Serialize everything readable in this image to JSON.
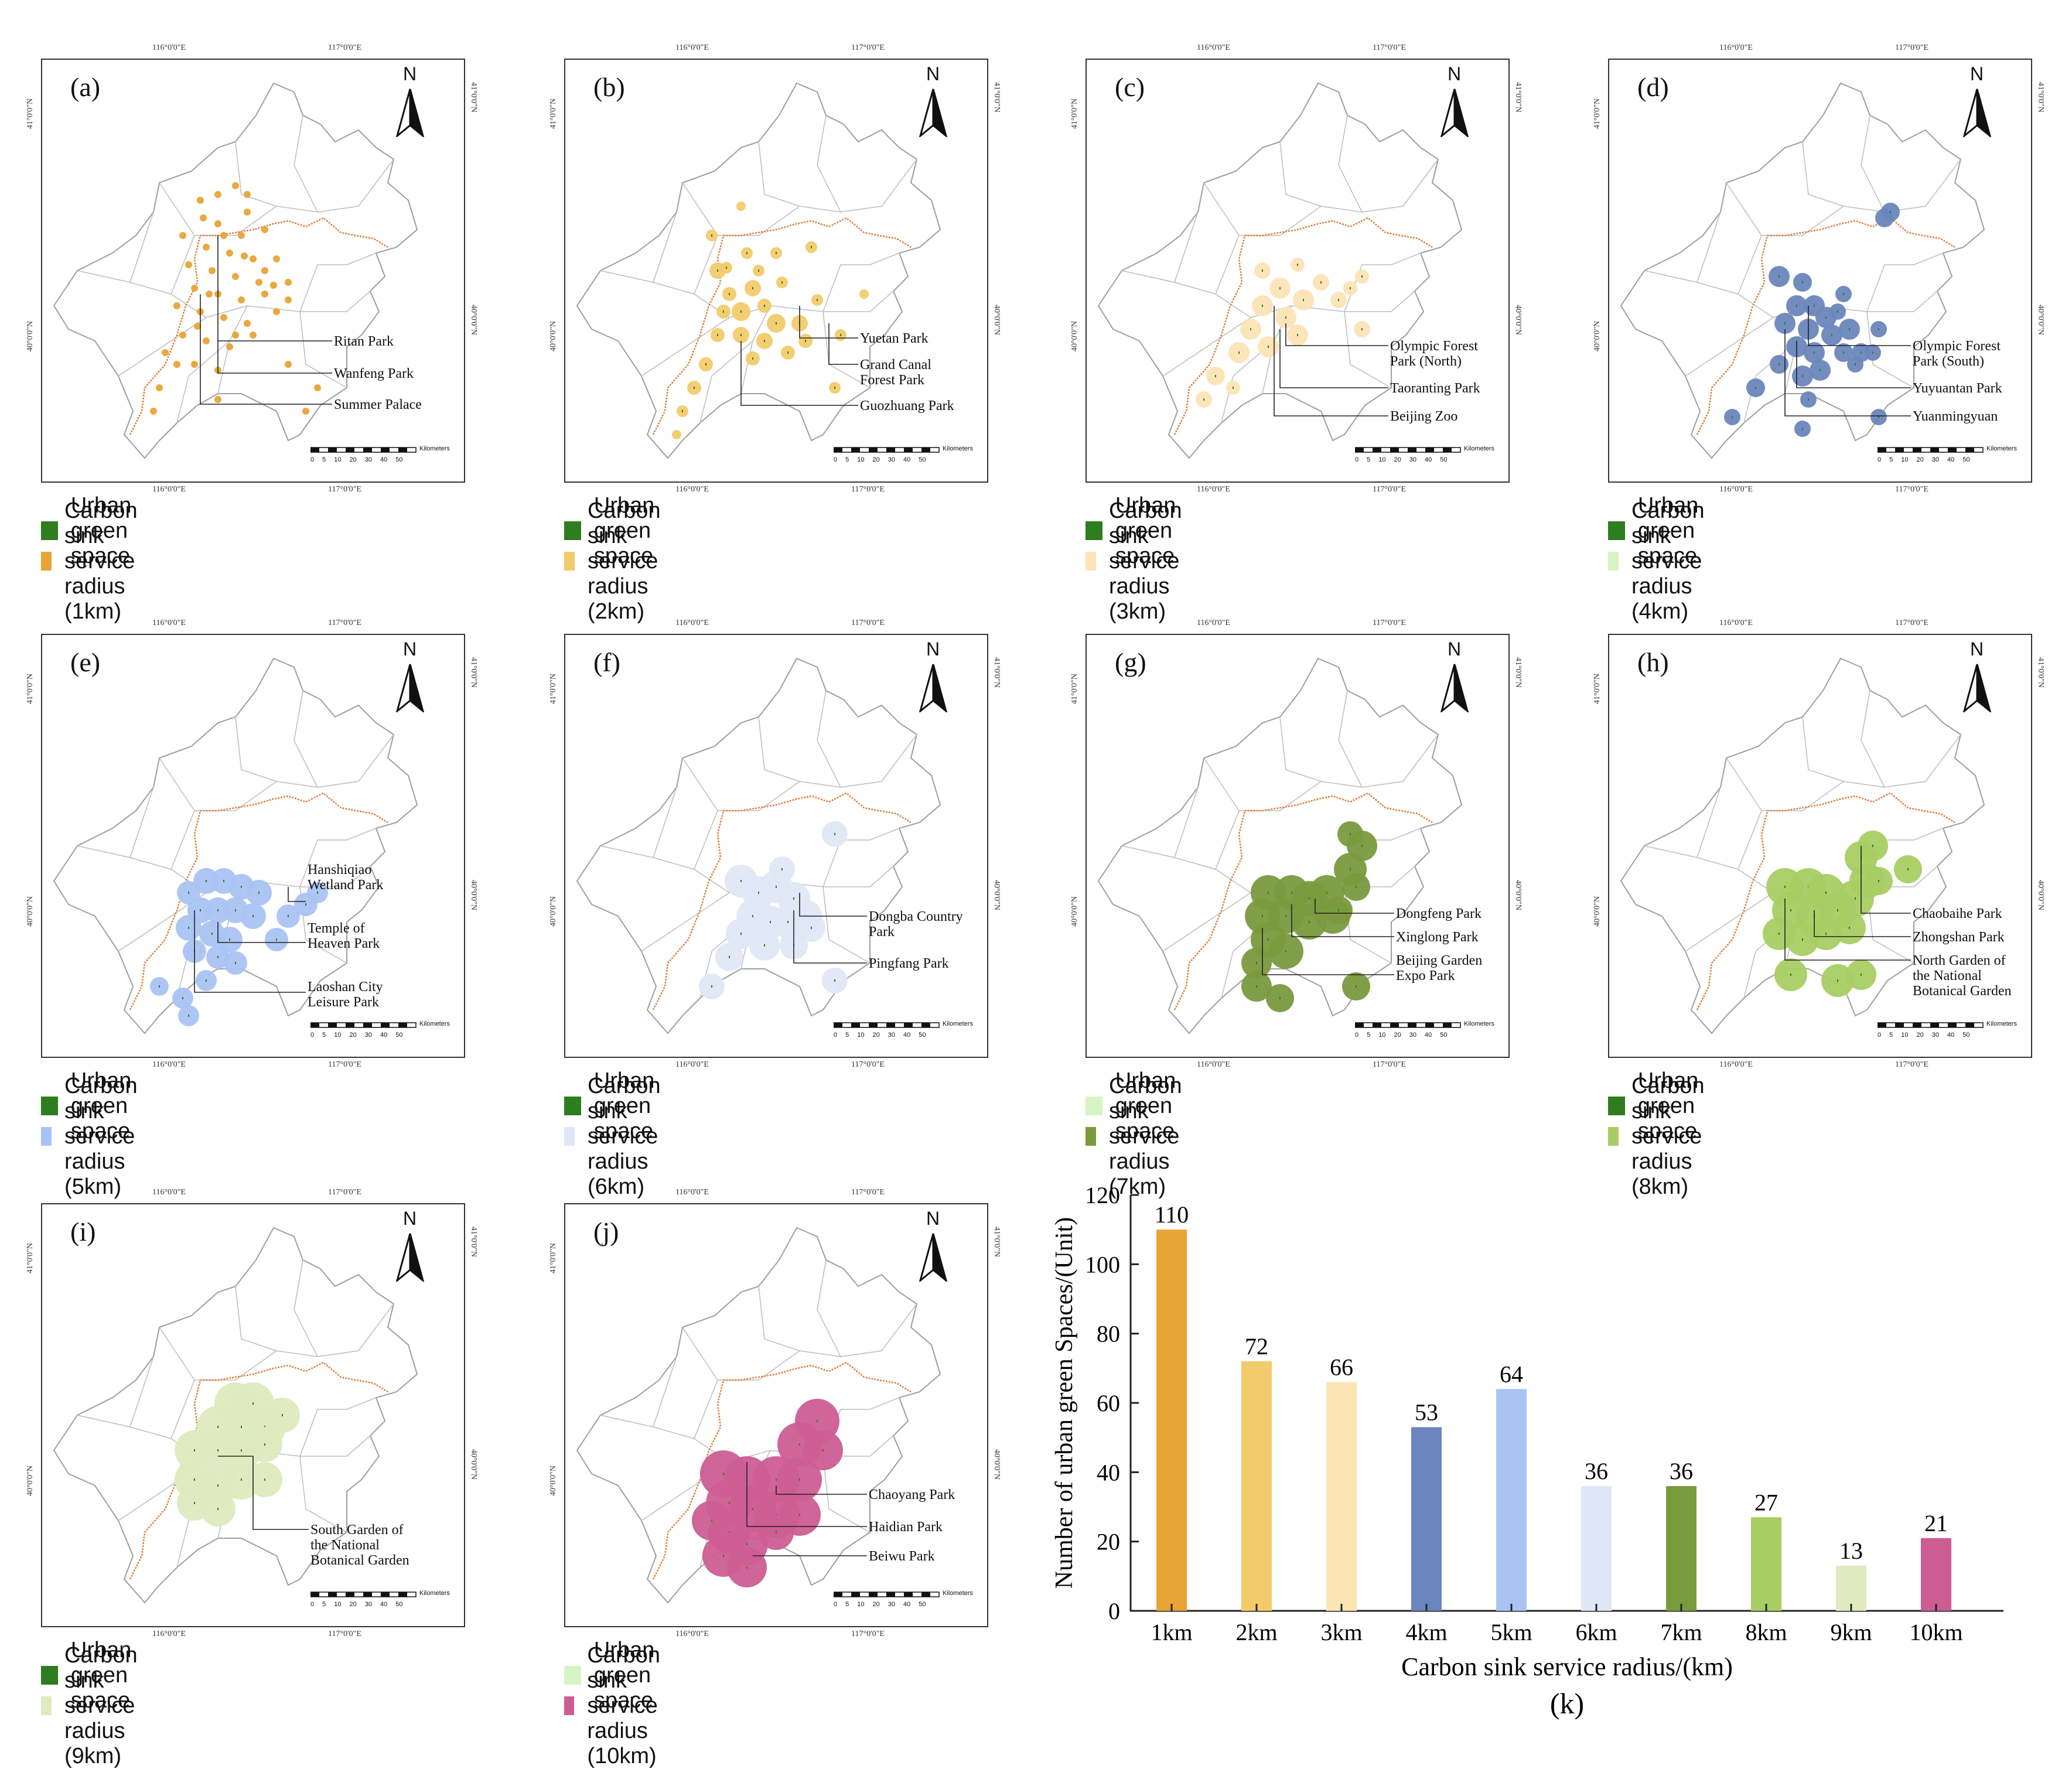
{
  "coords": {
    "lon_left": "116°0'0\"E",
    "lon_right": "117°0'0\"E",
    "lat_top": "41°0'0\"N",
    "lat_mid": "40°0'0\"N"
  },
  "map_common": {
    "north_label": "N",
    "scale_ticks": [
      "0",
      "5",
      "10",
      "20",
      "30",
      "40",
      "50"
    ],
    "scale_unit": "Kilometers",
    "legend_green_label": "Urban green space"
  },
  "colors": {
    "green_space": "#2e7d1f",
    "boundary_orange": "#e07b39",
    "district_gray": "#bdbdbd",
    "r1": "#e8a435",
    "r2": "#f2cb6a",
    "r3": "#fde4b5",
    "r4": "#6a86bd",
    "r5": "#a9c3f3",
    "r6": "#dfe7f6",
    "r7": "#7a9a3e",
    "r8": "#a8cd63",
    "r9": "#dfeabf",
    "r10": "#cc5d92"
  },
  "panels": [
    {
      "letter": "(a)",
      "legend_radius": "Carbon sink service radius (1km)",
      "legend_green_color": "#2e7d1f",
      "legend_radius_color": "#e8a435",
      "labels": [
        "Ritan Park",
        "Wanfeng Park",
        "Summer Palace"
      ]
    },
    {
      "letter": "(b)",
      "legend_radius": "Carbon sink service radius (2km)",
      "legend_green_color": "#2e7d1f",
      "legend_radius_color": "#f2cb6a",
      "labels": [
        "Yuetan Park",
        "Grand Canal",
        "Forest Park",
        "Guozhuang Park"
      ]
    },
    {
      "letter": "(c)",
      "legend_radius": "Carbon sink service radius (3km)",
      "legend_green_color": "#2e7d1f",
      "legend_radius_color": "#fde4b5",
      "labels": [
        "Olympic Forest",
        "Park (North)",
        "Taoranting Park",
        "Beijing Zoo"
      ]
    },
    {
      "letter": "(d)",
      "legend_radius": "Carbon sink service radius (4km)",
      "legend_green_color": "#2e7d1f",
      "legend_radius_color": "#d6f5c4",
      "labels": [
        "Olympic Forest",
        "Park (South)",
        "Yuyuantan Park",
        "Yuanmingyuan"
      ]
    },
    {
      "letter": "(e)",
      "legend_radius": "Carbon sink service radius (5km)",
      "legend_green_color": "#2e7d1f",
      "legend_radius_color": "#a9c3f3",
      "labels": [
        "Hanshiqiao",
        "Wetland Park",
        "Temple of",
        "Heaven Park",
        "Laoshan City",
        "Leisure Park"
      ]
    },
    {
      "letter": "(f)",
      "legend_radius": "Carbon sink service radius (6km)",
      "legend_green_color": "#2e7d1f",
      "legend_radius_color": "#dfe7f6",
      "labels": [
        "Dongba Country",
        "Park",
        "Pingfang Park"
      ]
    },
    {
      "letter": "(g)",
      "legend_radius": "Carbon sink service radius (7km)",
      "legend_green_color": "#d6f5c4",
      "legend_radius_color": "#7a9a3e",
      "labels": [
        "Dongfeng Park",
        "Xinglong Park",
        "Beijing Garden",
        "Expo Park"
      ]
    },
    {
      "letter": "(h)",
      "legend_radius": "Carbon sink service radius (8km)",
      "legend_green_color": "#2e7d1f",
      "legend_radius_color": "#a8cd63",
      "labels": [
        "Chaobaihe Park",
        "Zhongshan Park",
        "North Garden of",
        "the National",
        "Botanical Garden"
      ]
    },
    {
      "letter": "(i)",
      "legend_radius": "Carbon sink service radius (9km)",
      "legend_green_color": "#2e7d1f",
      "legend_radius_color": "#dfeabf",
      "labels": [
        "South Garden of",
        "the National",
        "Botanical Garden"
      ]
    },
    {
      "letter": "(j)",
      "legend_radius": "Carbon sink service radius (10km)",
      "legend_green_color": "#d6f5c4",
      "legend_radius_color": "#cc5d92",
      "labels": [
        "Chaoyang Park",
        "Haidian Park",
        "Beiwu Park"
      ]
    }
  ],
  "chart_data": {
    "type": "bar",
    "panel_label": "(k)",
    "categories": [
      "1km",
      "2km",
      "3km",
      "4km",
      "5km",
      "6km",
      "7km",
      "8km",
      "9km",
      "10km"
    ],
    "values": [
      110,
      72,
      66,
      53,
      64,
      36,
      36,
      27,
      13,
      21
    ],
    "bar_colors": [
      "#e8a435",
      "#f2cb6a",
      "#fde4b5",
      "#6a86bd",
      "#a9c3f3",
      "#dfe7f6",
      "#7a9a3e",
      "#a8cd63",
      "#dfeabf",
      "#cc5d92"
    ],
    "xlabel": "Carbon sink service radius/(km)",
    "ylabel": "Number of urban green Spaces/(Unit)",
    "ylim": [
      0,
      120
    ],
    "yticks": [
      0,
      20,
      40,
      60,
      80,
      100,
      120
    ],
    "grid": false
  }
}
